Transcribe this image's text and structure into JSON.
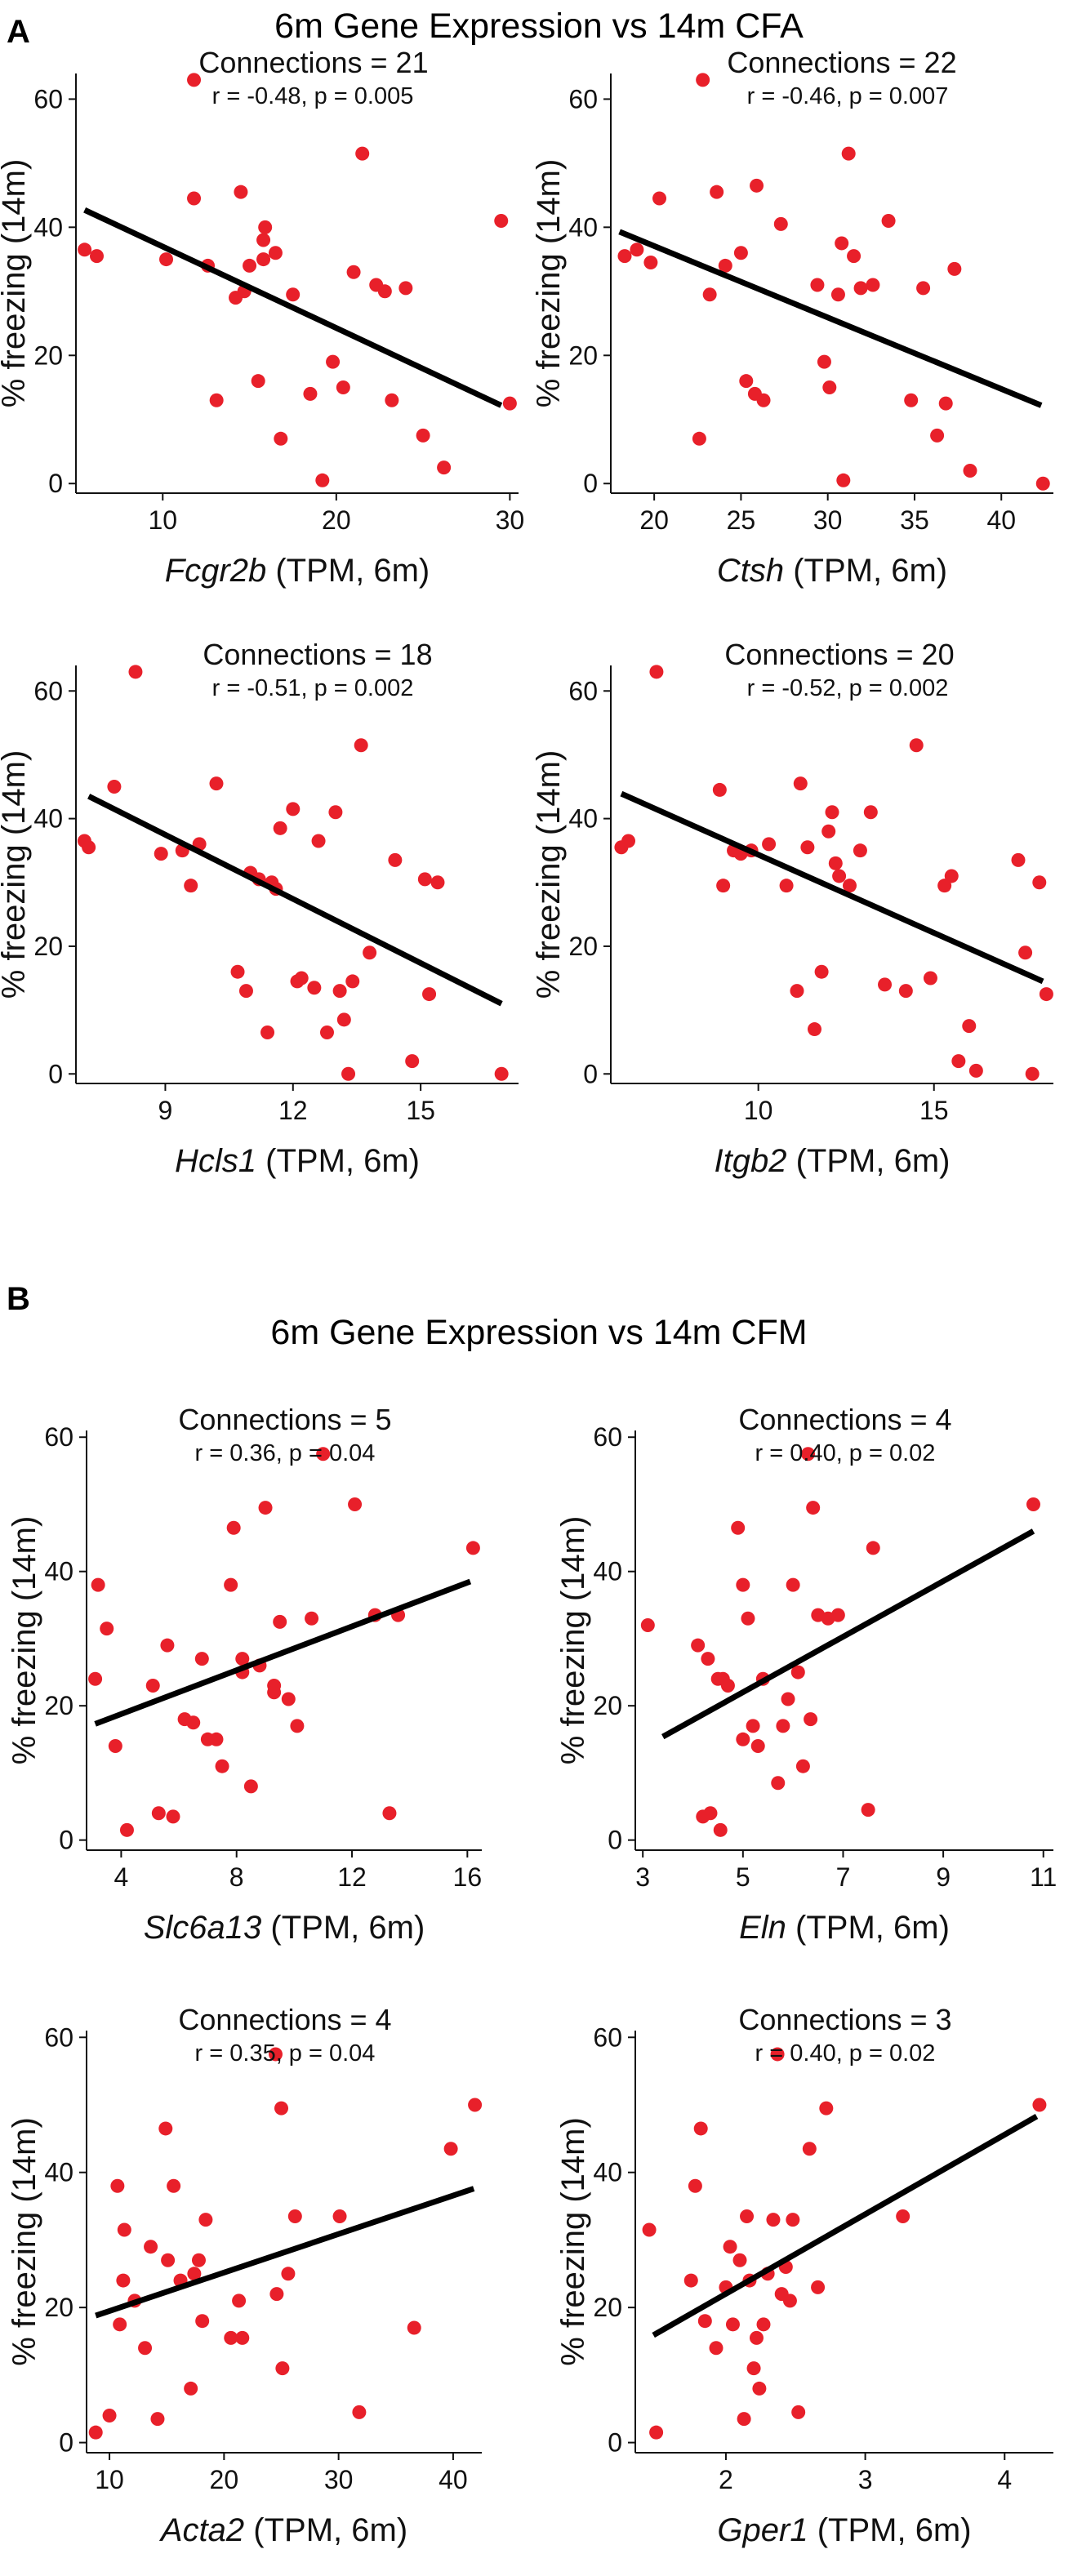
{
  "panels": [
    {
      "letter": "A",
      "title": "6m Gene Expression vs 14m CFA",
      "charts": [
        {
          "type": "scatter",
          "title": "Connections = 21",
          "stats": "r = -0.48, p = 0.005",
          "gene": "Fcgr2b",
          "xlabel_suffix": " (TPM, 6m)",
          "ylabel": "% freezing (14m)",
          "xlim": [
            5,
            30.5
          ],
          "ylim": [
            -1.5,
            64
          ],
          "xticks": [
            10,
            20,
            30
          ],
          "yticks": [
            0,
            20,
            40,
            60
          ],
          "x": [
            5.5,
            6.2,
            10.2,
            11.8,
            11.8,
            12.6,
            13.1,
            14.2,
            14.5,
            14.7,
            15,
            15.5,
            15.8,
            15.8,
            15.9,
            16.5,
            16.8,
            17.5,
            18.5,
            19.2,
            19.8,
            20.4,
            21,
            21.5,
            22.3,
            22.8,
            23.2,
            24,
            25,
            26.2,
            29.5,
            30
          ],
          "y": [
            36.5,
            35.5,
            35,
            63,
            44.5,
            34,
            13,
            29,
            45.5,
            30,
            34,
            16,
            35,
            38,
            40,
            36,
            7,
            29.5,
            14,
            0.5,
            19,
            15,
            33,
            51.5,
            31,
            30,
            13,
            30.5,
            7.5,
            2.5,
            41,
            12.5
          ],
          "fit": [
            [
              5.5,
              42.7
            ],
            [
              29.5,
              12.2
            ]
          ]
        },
        {
          "type": "scatter",
          "title": "Connections = 22",
          "stats": "r = -0.46, p = 0.007",
          "gene": "Ctsh",
          "xlabel_suffix": " (TPM, 6m)",
          "ylabel": "% freezing (14m)",
          "xlim": [
            17.5,
            43
          ],
          "ylim": [
            -1.5,
            64
          ],
          "xticks": [
            20,
            25,
            30,
            35,
            40
          ],
          "yticks": [
            0,
            20,
            40,
            60
          ],
          "x": [
            18.3,
            19,
            19.8,
            20.3,
            22.6,
            22.8,
            23.2,
            23.6,
            24.1,
            25,
            25.3,
            25.8,
            25.9,
            26.3,
            27.3,
            29.4,
            29.8,
            30.1,
            30.6,
            30.8,
            30.9,
            31.2,
            31.5,
            31.9,
            32.6,
            33.5,
            34.8,
            35.5,
            36.3,
            36.8,
            37.3,
            38.2,
            42.4
          ],
          "y": [
            35.5,
            36.5,
            34.5,
            44.5,
            7,
            63,
            29.5,
            45.5,
            34,
            36,
            16,
            14,
            46.5,
            13,
            40.5,
            31,
            19,
            15,
            29.5,
            37.5,
            0.5,
            51.5,
            35.5,
            30.5,
            31,
            41,
            13,
            30.5,
            7.5,
            12.5,
            33.5,
            2,
            0
          ],
          "fit": [
            [
              18,
              39.3
            ],
            [
              42.3,
              12.2
            ]
          ]
        },
        {
          "type": "scatter",
          "title": "Connections = 18",
          "stats": "r = -0.51, p = 0.002",
          "gene": "Hcls1",
          "xlabel_suffix": " (TPM, 6m)",
          "ylabel": "% freezing (14m)",
          "xlim": [
            6.9,
            17.3
          ],
          "ylim": [
            -1.5,
            64
          ],
          "xticks": [
            9,
            12,
            15
          ],
          "yticks": [
            0,
            20,
            40,
            60
          ],
          "x": [
            7.1,
            7.2,
            7.8,
            8.3,
            8.9,
            9.4,
            9.6,
            9.8,
            10.2,
            10.7,
            10.9,
            11,
            11.2,
            11.4,
            11.5,
            11.6,
            11.7,
            12,
            12.1,
            12.2,
            12.5,
            12.6,
            12.8,
            13,
            13.1,
            13.2,
            13.3,
            13.4,
            13.6,
            13.8,
            14.4,
            14.8,
            15.1,
            15.2,
            15.4,
            16.9
          ],
          "y": [
            36.5,
            35.5,
            45,
            63,
            34.5,
            35,
            29.5,
            36,
            45.5,
            16,
            13,
            31.5,
            30.5,
            6.5,
            30,
            29,
            38.5,
            41.5,
            14.5,
            15,
            13.5,
            36.5,
            6.5,
            41,
            13,
            8.5,
            0,
            14.5,
            51.5,
            19,
            33.5,
            2,
            30.5,
            12.5,
            30,
            0
          ],
          "fit": [
            [
              7.2,
              43.5
            ],
            [
              16.9,
              11
            ]
          ]
        },
        {
          "type": "scatter",
          "title": "Connections = 20",
          "stats": "r = -0.52, p = 0.002",
          "gene": "Itgb2",
          "xlabel_suffix": " (TPM, 6m)",
          "ylabel": "% freezing (14m)",
          "xlim": [
            5.8,
            18.4
          ],
          "ylim": [
            -1.5,
            64
          ],
          "xticks": [
            10,
            15
          ],
          "yticks": [
            0,
            20,
            40,
            60
          ],
          "x": [
            6.1,
            6.3,
            7.1,
            8.9,
            9,
            9.3,
            9.5,
            9.8,
            10.3,
            10.8,
            11.1,
            11.2,
            11.4,
            11.6,
            11.8,
            12,
            12.1,
            12.2,
            12.3,
            12.6,
            12.9,
            13.2,
            13.6,
            14.2,
            14.5,
            14.9,
            15.3,
            15.5,
            15.7,
            16,
            16.2,
            17.4,
            17.6,
            17.8,
            18,
            18.2
          ],
          "y": [
            35.5,
            36.5,
            63,
            44.5,
            29.5,
            35,
            34.5,
            35,
            36,
            29.5,
            13,
            45.5,
            35.5,
            7,
            16,
            38,
            41,
            33,
            31,
            29.5,
            35,
            41,
            14,
            13,
            51.5,
            15,
            29.5,
            31,
            2,
            7.5,
            0.5,
            33.5,
            19,
            0,
            30,
            12.5
          ],
          "fit": [
            [
              6.1,
              43.9
            ],
            [
              18.1,
              14.5
            ]
          ]
        }
      ]
    },
    {
      "letter": "B",
      "title": "6m Gene Expression vs 14m CFM",
      "charts": [
        {
          "type": "scatter",
          "title": "Connections = 5",
          "stats": "r = 0.36, p = 0.04",
          "gene": "Slc6a13",
          "xlabel_suffix": " (TPM, 6m)",
          "ylabel": "% freezing (14m)",
          "xlim": [
            2.8,
            16.5
          ],
          "ylim": [
            -1.5,
            61
          ],
          "xticks": [
            4,
            8,
            12,
            16
          ],
          "yticks": [
            0,
            20,
            40,
            60
          ],
          "x": [
            3.1,
            3.2,
            3.5,
            3.8,
            4.2,
            5.1,
            5.3,
            5.6,
            5.8,
            6.2,
            6.5,
            6.8,
            7,
            7.3,
            7.5,
            7.8,
            7.9,
            8.2,
            8.2,
            8.5,
            8.8,
            9,
            9.3,
            9.3,
            9.5,
            9.8,
            10.1,
            10.6,
            11,
            12.1,
            12.8,
            13.3,
            13.6,
            16.2
          ],
          "y": [
            24,
            38,
            31.5,
            14,
            1.5,
            23,
            4,
            29,
            3.5,
            18,
            17.5,
            27,
            15,
            15,
            11,
            38,
            46.5,
            25,
            27,
            8,
            26,
            49.5,
            23,
            22,
            32.5,
            21,
            17,
            33,
            57.5,
            50,
            33.5,
            4,
            33.5,
            43.5
          ],
          "fit": [
            [
              3.1,
              17.3
            ],
            [
              16.1,
              38.5
            ]
          ]
        },
        {
          "type": "scatter",
          "title": "Connections = 4",
          "stats": "r = 0.40, p = 0.02",
          "gene": "Eln",
          "xlabel_suffix": " (TPM, 6m)",
          "ylabel": "% freezing (14m)",
          "xlim": [
            2.85,
            11.2
          ],
          "ylim": [
            -1.5,
            61
          ],
          "xticks": [
            3,
            5,
            7,
            9,
            11
          ],
          "yticks": [
            0,
            20,
            40,
            60
          ],
          "x": [
            3.1,
            4.1,
            4.2,
            4.3,
            4.35,
            4.5,
            4.55,
            4.6,
            4.7,
            4.9,
            5,
            5,
            5.1,
            5.2,
            5.3,
            5.4,
            5.7,
            5.8,
            5.9,
            6,
            6.1,
            6.2,
            6.3,
            6.35,
            6.4,
            6.5,
            6.7,
            6.9,
            7.5,
            7.6,
            10.8
          ],
          "y": [
            32,
            29,
            3.5,
            27,
            4,
            24,
            1.5,
            24,
            23,
            46.5,
            15,
            38,
            33,
            17,
            14,
            24,
            8.5,
            17,
            21,
            38,
            25,
            11,
            57.5,
            18,
            49.5,
            33.5,
            33,
            33.5,
            4.5,
            43.5,
            50
          ],
          "fit": [
            [
              3.4,
              15.4
            ],
            [
              10.8,
              46
            ]
          ]
        },
        {
          "type": "scatter",
          "title": "Connections = 4",
          "stats": "r = 0.35, p = 0.04",
          "gene": "Acta2",
          "xlabel_suffix": " (TPM, 6m)",
          "ylabel": "% freezing (14m)",
          "xlim": [
            8,
            42.5
          ],
          "ylim": [
            -1.5,
            61
          ],
          "xticks": [
            10,
            20,
            30,
            40
          ],
          "yticks": [
            0,
            20,
            40,
            60
          ],
          "x": [
            8.8,
            10,
            10.7,
            10.9,
            11.2,
            11.3,
            12.2,
            13.1,
            13.6,
            14.2,
            14.9,
            15.1,
            15.6,
            16.2,
            17.1,
            17.4,
            17.8,
            18.1,
            18.4,
            20.6,
            21.3,
            21.6,
            24.5,
            24.6,
            25,
            25.1,
            25.6,
            26.2,
            30.1,
            31.8,
            36.6,
            39.8,
            41.9
          ],
          "y": [
            1.5,
            4,
            38,
            17.5,
            24,
            31.5,
            21,
            14,
            29,
            3.5,
            46.5,
            27,
            38,
            24,
            8,
            25,
            27,
            18,
            33,
            15.5,
            21,
            15.5,
            57.5,
            22,
            49.5,
            11,
            25,
            33.5,
            33.5,
            4.5,
            17,
            43.5,
            50
          ],
          "fit": [
            [
              8.8,
              18.8
            ],
            [
              41.8,
              37.6
            ]
          ]
        },
        {
          "type": "scatter",
          "title": "Connections = 3",
          "stats": "r = 0.40, p = 0.02",
          "gene": "Gper1",
          "xlabel_suffix": " (TPM, 6m)",
          "ylabel": "% freezing (14m)",
          "xlim": [
            1.35,
            4.35
          ],
          "ylim": [
            -1.5,
            61
          ],
          "xticks": [
            2,
            3,
            4
          ],
          "yticks": [
            0,
            20,
            40,
            60
          ],
          "x": [
            1.45,
            1.5,
            1.75,
            1.78,
            1.82,
            1.85,
            1.93,
            2,
            2.03,
            2.05,
            2.1,
            2.13,
            2.15,
            2.17,
            2.2,
            2.22,
            2.24,
            2.27,
            2.3,
            2.34,
            2.37,
            2.4,
            2.43,
            2.46,
            2.48,
            2.52,
            2.6,
            2.66,
            2.72,
            3.27,
            4.25
          ],
          "y": [
            31.5,
            1.5,
            24,
            38,
            46.5,
            18,
            14,
            23,
            29,
            17.5,
            27,
            3.5,
            33.5,
            24,
            11,
            15.5,
            8,
            17.5,
            25,
            33,
            57.5,
            22,
            26,
            21,
            33,
            4.5,
            43.5,
            23,
            49.5,
            33.5,
            50
          ],
          "fit": [
            [
              1.48,
              15.9
            ],
            [
              4.23,
              48.3
            ]
          ]
        }
      ]
    }
  ],
  "colors": {
    "points": "#e8202a",
    "line": "#000000",
    "axis": "#111111",
    "text": "#111111"
  }
}
